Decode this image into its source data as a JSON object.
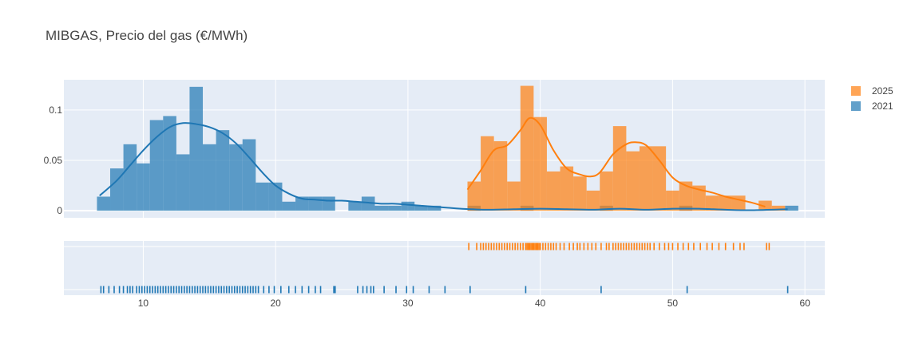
{
  "chart_data": {
    "type": "histogram",
    "title": "MIBGAS, Precio del gas (€/MWh)",
    "xlabel": "",
    "ylabel": "",
    "xlim": [
      4,
      61.5
    ],
    "ylim": [
      -0.007,
      0.13
    ],
    "x_ticks": [
      10,
      20,
      30,
      40,
      50,
      60
    ],
    "y_ticks": [
      0,
      0.05,
      0.1
    ],
    "y_tick_labels": [
      "0",
      "0.05",
      "0.1"
    ],
    "grid": true,
    "bin_width": 1,
    "legend": {
      "position": "top-right"
    },
    "series": [
      {
        "name": "2025",
        "color": "#ff7f0e",
        "bins": [
          {
            "x0": 34.5,
            "value": 0.029
          },
          {
            "x0": 35.5,
            "value": 0.074
          },
          {
            "x0": 36.5,
            "value": 0.069
          },
          {
            "x0": 37.5,
            "value": 0.029
          },
          {
            "x0": 38.5,
            "value": 0.124
          },
          {
            "x0": 39.5,
            "value": 0.093
          },
          {
            "x0": 40.5,
            "value": 0.039
          },
          {
            "x0": 41.5,
            "value": 0.044
          },
          {
            "x0": 42.5,
            "value": 0.034
          },
          {
            "x0": 43.5,
            "value": 0.02
          },
          {
            "x0": 44.5,
            "value": 0.039
          },
          {
            "x0": 45.5,
            "value": 0.084
          },
          {
            "x0": 46.5,
            "value": 0.059
          },
          {
            "x0": 47.5,
            "value": 0.064
          },
          {
            "x0": 48.5,
            "value": 0.064
          },
          {
            "x0": 49.5,
            "value": 0.02
          },
          {
            "x0": 50.5,
            "value": 0.029
          },
          {
            "x0": 51.5,
            "value": 0.025
          },
          {
            "x0": 52.5,
            "value": 0.015
          },
          {
            "x0": 53.5,
            "value": 0.015
          },
          {
            "x0": 54.5,
            "value": 0.015
          },
          {
            "x0": 56.5,
            "value": 0.01
          },
          {
            "x0": 57.5,
            "value": 0.005
          }
        ],
        "kde": [
          [
            34.5,
            0.021
          ],
          [
            35.5,
            0.04
          ],
          [
            36.5,
            0.06
          ],
          [
            37.5,
            0.065
          ],
          [
            38.5,
            0.08
          ],
          [
            39.2,
            0.092
          ],
          [
            40,
            0.085
          ],
          [
            41,
            0.06
          ],
          [
            42,
            0.042
          ],
          [
            43,
            0.036
          ],
          [
            43.8,
            0.034
          ],
          [
            44.5,
            0.038
          ],
          [
            45.5,
            0.056
          ],
          [
            46.5,
            0.066
          ],
          [
            47.2,
            0.068
          ],
          [
            48,
            0.065
          ],
          [
            49,
            0.05
          ],
          [
            50,
            0.033
          ],
          [
            51,
            0.025
          ],
          [
            52,
            0.021
          ],
          [
            53,
            0.018
          ],
          [
            54,
            0.014
          ],
          [
            55,
            0.011
          ],
          [
            56,
            0.008
          ],
          [
            57,
            0.004
          ]
        ],
        "rug": [
          34.6,
          35.2,
          35.5,
          35.7,
          35.9,
          36.1,
          36.3,
          36.5,
          36.7,
          36.9,
          37.1,
          37.3,
          37.5,
          37.7,
          37.9,
          38.1,
          38.3,
          38.5,
          38.7,
          38.9,
          39.0,
          39.1,
          39.2,
          39.3,
          39.4,
          39.5,
          39.6,
          39.7,
          39.8,
          39.9,
          40.0,
          40.2,
          40.4,
          40.6,
          40.8,
          41.0,
          41.2,
          41.5,
          41.8,
          42.2,
          42.5,
          42.8,
          43.0,
          43.3,
          43.6,
          43.9,
          44.2,
          44.6,
          45.0,
          45.2,
          45.5,
          45.7,
          45.9,
          46.1,
          46.3,
          46.5,
          46.7,
          46.9,
          47.1,
          47.3,
          47.5,
          47.7,
          47.9,
          48.1,
          48.3,
          48.6,
          49.0,
          49.4,
          49.7,
          50.0,
          50.4,
          50.8,
          51.2,
          51.6,
          52.1,
          52.6,
          53.0,
          53.5,
          54.0,
          54.6,
          55.1,
          55.4,
          57.1,
          57.3
        ]
      },
      {
        "name": "2021",
        "color": "#1f77b4",
        "bins": [
          {
            "x0": 6.5,
            "value": 0.014
          },
          {
            "x0": 7.5,
            "value": 0.042
          },
          {
            "x0": 8.5,
            "value": 0.066
          },
          {
            "x0": 9.5,
            "value": 0.047
          },
          {
            "x0": 10.5,
            "value": 0.09
          },
          {
            "x0": 11.5,
            "value": 0.094
          },
          {
            "x0": 12.5,
            "value": 0.056
          },
          {
            "x0": 13.5,
            "value": 0.123
          },
          {
            "x0": 14.5,
            "value": 0.066
          },
          {
            "x0": 15.5,
            "value": 0.08
          },
          {
            "x0": 16.5,
            "value": 0.066
          },
          {
            "x0": 17.5,
            "value": 0.071
          },
          {
            "x0": 18.5,
            "value": 0.028
          },
          {
            "x0": 19.5,
            "value": 0.028
          },
          {
            "x0": 20.5,
            "value": 0.009
          },
          {
            "x0": 21.5,
            "value": 0.014
          },
          {
            "x0": 22.5,
            "value": 0.014
          },
          {
            "x0": 23.5,
            "value": 0.014
          },
          {
            "x0": 25.5,
            "value": 0.009
          },
          {
            "x0": 26.5,
            "value": 0.014
          },
          {
            "x0": 27.5,
            "value": 0.005
          },
          {
            "x0": 28.5,
            "value": 0.005
          },
          {
            "x0": 29.5,
            "value": 0.009
          },
          {
            "x0": 30.5,
            "value": 0.005
          },
          {
            "x0": 31.5,
            "value": 0.005
          },
          {
            "x0": 34.5,
            "value": 0.005
          },
          {
            "x0": 38.5,
            "value": 0.005
          },
          {
            "x0": 44.5,
            "value": 0.005
          },
          {
            "x0": 50.5,
            "value": 0.005
          },
          {
            "x0": 58.5,
            "value": 0.005
          }
        ],
        "kde": [
          [
            6.7,
            0.015
          ],
          [
            8,
            0.03
          ],
          [
            9,
            0.045
          ],
          [
            10,
            0.06
          ],
          [
            11,
            0.073
          ],
          [
            12,
            0.083
          ],
          [
            13,
            0.087
          ],
          [
            14,
            0.086
          ],
          [
            15,
            0.083
          ],
          [
            16,
            0.077
          ],
          [
            17,
            0.067
          ],
          [
            18,
            0.053
          ],
          [
            19,
            0.038
          ],
          [
            20,
            0.025
          ],
          [
            21,
            0.017
          ],
          [
            22,
            0.012
          ],
          [
            23,
            0.011
          ],
          [
            24,
            0.01
          ],
          [
            25,
            0.01
          ],
          [
            26,
            0.009
          ],
          [
            27,
            0.008
          ],
          [
            28,
            0.007
          ],
          [
            29,
            0.007
          ],
          [
            30,
            0.006
          ],
          [
            31,
            0.005
          ],
          [
            32,
            0.004
          ],
          [
            33,
            0.003
          ],
          [
            34,
            0.002
          ],
          [
            36,
            0.001
          ],
          [
            38,
            0.0015
          ],
          [
            40,
            0.002
          ],
          [
            42,
            0.0015
          ],
          [
            44,
            0.001
          ],
          [
            46,
            0.002
          ],
          [
            48,
            0.001
          ],
          [
            50,
            0.002
          ],
          [
            52,
            0.002
          ],
          [
            54,
            0.001
          ],
          [
            56,
            0.0005
          ],
          [
            58.7,
            0.0015
          ]
        ],
        "rug": [
          6.8,
          7.0,
          7.4,
          7.8,
          8.2,
          8.5,
          8.8,
          9.0,
          9.2,
          9.5,
          9.7,
          9.9,
          10.1,
          10.3,
          10.5,
          10.7,
          10.9,
          11.1,
          11.3,
          11.5,
          11.7,
          11.9,
          12.1,
          12.3,
          12.5,
          12.7,
          12.9,
          13.1,
          13.3,
          13.5,
          13.7,
          13.9,
          14.1,
          14.3,
          14.5,
          14.7,
          14.9,
          15.1,
          15.3,
          15.5,
          15.7,
          15.9,
          16.1,
          16.3,
          16.5,
          16.7,
          16.9,
          17.1,
          17.3,
          17.5,
          17.7,
          17.9,
          18.1,
          18.3,
          18.5,
          18.7,
          19.1,
          19.5,
          19.9,
          20.4,
          21.0,
          21.5,
          22.0,
          22.5,
          23.0,
          23.4,
          24.4,
          24.5,
          26.2,
          26.6,
          26.9,
          27.2,
          27.4,
          28.2,
          29.1,
          29.9,
          30.4,
          31.6,
          32.8,
          34.7,
          38.9,
          44.6,
          51.1,
          58.7
        ]
      }
    ]
  }
}
